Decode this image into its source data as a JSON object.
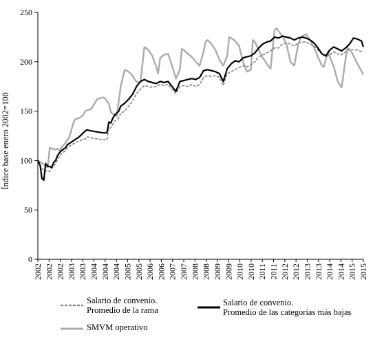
{
  "chart_data": {
    "type": "line",
    "title": "",
    "ylabel": "Índice base enero 2002=100",
    "xlabel": "",
    "ylim": [
      0,
      250
    ],
    "yticks": [
      0,
      50,
      100,
      150,
      200,
      250
    ],
    "xlim": [
      2002.0,
      2015.75
    ],
    "grid": false,
    "legend_position": "bottom",
    "xtick_labels": [
      "2002",
      "2002",
      "2002",
      "2003",
      "2003",
      "2004",
      "2004",
      "2004",
      "2005",
      "2005",
      "2006",
      "2006",
      "2007",
      "2007",
      "2008",
      "2008",
      "2009",
      "2009",
      "2010",
      "2010",
      "2011",
      "2011",
      "2012",
      "2012",
      "2013",
      "2013",
      "2014",
      "2014",
      "2015",
      "2015"
    ],
    "series": [
      {
        "name": "Salario de convenio. Promedio de la rama",
        "legend_lines": [
          "Salario de convenio.",
          "Promedio de la rama"
        ],
        "color": "#808080",
        "style": "dashed",
        "x": [
          2002.0,
          2002.1,
          2002.17,
          2002.25,
          2002.33,
          2002.42,
          2002.5,
          2002.58,
          2002.67,
          2002.75,
          2002.83,
          2002.92,
          2003.0,
          2003.17,
          2003.25,
          2003.5,
          2003.75,
          2004.0,
          2004.08,
          2004.25,
          2004.5,
          2004.75,
          2004.92,
          2005.0,
          2005.08,
          2005.17,
          2005.25,
          2005.42,
          2005.5,
          2005.67,
          2005.83,
          2006.0,
          2006.17,
          2006.33,
          2006.5,
          2006.67,
          2006.83,
          2007.0,
          2007.17,
          2007.33,
          2007.5,
          2007.67,
          2007.83,
          2008.0,
          2008.17,
          2008.33,
          2008.5,
          2008.67,
          2008.83,
          2009.0,
          2009.17,
          2009.33,
          2009.5,
          2009.67,
          2009.83,
          2010.0,
          2010.17,
          2010.33,
          2010.5,
          2010.67,
          2010.83,
          2011.0,
          2011.17,
          2011.33,
          2011.5,
          2011.67,
          2011.83,
          2012.0,
          2012.17,
          2012.33,
          2012.5,
          2012.67,
          2012.83,
          2013.0,
          2013.17,
          2013.33,
          2013.5,
          2013.67,
          2013.83,
          2014.0,
          2014.17,
          2014.33,
          2014.5,
          2014.67,
          2014.83,
          2015.0,
          2015.17,
          2015.33,
          2015.5,
          2015.67,
          2015.75
        ],
        "y": [
          100,
          95,
          92,
          90,
          90,
          89,
          89,
          92,
          94,
          97,
          101,
          104,
          107,
          110,
          113,
          117,
          120,
          122,
          124,
          123,
          122,
          121,
          121,
          133,
          133,
          137,
          140,
          143,
          148,
          150,
          155,
          160,
          168,
          172,
          176,
          175,
          174,
          175,
          177,
          176,
          177,
          172,
          168,
          175,
          176,
          175,
          177,
          175,
          177,
          184,
          186,
          185,
          186,
          184,
          176,
          188,
          190,
          192,
          194,
          196,
          195,
          197,
          200,
          205,
          207,
          209,
          211,
          214,
          214,
          218,
          219,
          218,
          216,
          219,
          220,
          220,
          218,
          216,
          212,
          208,
          205,
          207,
          210,
          208,
          207,
          210,
          213,
          212,
          212,
          210,
          211
        ]
      },
      {
        "name": "Salario de convenio. Promedio de las categorías más bajas",
        "legend_lines": [
          "Salario de convenio.",
          "Promedio de las categorías más bajas"
        ],
        "color": "#000000",
        "style": "solid",
        "x": [
          2002.0,
          2002.1,
          2002.17,
          2002.25,
          2002.33,
          2002.42,
          2002.5,
          2002.58,
          2002.67,
          2002.75,
          2002.83,
          2002.92,
          2003.0,
          2003.17,
          2003.25,
          2003.5,
          2003.75,
          2004.0,
          2004.08,
          2004.25,
          2004.5,
          2004.75,
          2004.92,
          2005.0,
          2005.08,
          2005.17,
          2005.25,
          2005.42,
          2005.5,
          2005.67,
          2005.83,
          2006.0,
          2006.17,
          2006.33,
          2006.5,
          2006.67,
          2006.83,
          2007.0,
          2007.17,
          2007.33,
          2007.5,
          2007.67,
          2007.83,
          2008.0,
          2008.17,
          2008.33,
          2008.5,
          2008.67,
          2008.83,
          2009.0,
          2009.17,
          2009.33,
          2009.5,
          2009.67,
          2009.83,
          2010.0,
          2010.17,
          2010.33,
          2010.5,
          2010.67,
          2010.83,
          2011.0,
          2011.17,
          2011.33,
          2011.5,
          2011.67,
          2011.83,
          2012.0,
          2012.17,
          2012.33,
          2012.5,
          2012.67,
          2012.83,
          2013.0,
          2013.17,
          2013.33,
          2013.5,
          2013.67,
          2013.83,
          2014.0,
          2014.17,
          2014.33,
          2014.5,
          2014.67,
          2014.83,
          2015.0,
          2015.17,
          2015.33,
          2015.5,
          2015.67,
          2015.75
        ],
        "y": [
          100,
          95,
          82,
          80,
          97,
          94,
          94,
          93,
          98,
          100,
          105,
          108,
          110,
          113,
          116,
          120,
          124,
          130,
          131,
          130,
          129,
          128,
          128,
          139,
          138,
          143,
          146,
          150,
          155,
          158,
          162,
          167,
          175,
          180,
          182,
          180,
          179,
          178,
          180,
          179,
          180,
          175,
          170,
          180,
          181,
          182,
          183,
          182,
          184,
          191,
          192,
          191,
          190,
          188,
          180,
          193,
          198,
          201,
          200,
          204,
          205,
          206,
          209,
          214,
          218,
          220,
          221,
          225,
          224,
          226,
          225,
          224,
          222,
          224,
          225,
          224,
          222,
          219,
          214,
          208,
          206,
          212,
          215,
          213,
          211,
          214,
          218,
          224,
          223,
          221,
          215
        ]
      },
      {
        "name": "SMVM operativo",
        "legend_lines": [
          "SMVM operativo"
        ],
        "color": "#ababab",
        "style": "solid",
        "x": [
          2002.0,
          2002.2,
          2002.42,
          2002.5,
          2002.58,
          2002.75,
          2002.83,
          2002.92,
          2003.0,
          2003.17,
          2003.33,
          2003.5,
          2003.58,
          2003.75,
          2003.92,
          2004.0,
          2004.08,
          2004.25,
          2004.5,
          2004.75,
          2004.83,
          2004.92,
          2005.0,
          2005.08,
          2005.17,
          2005.33,
          2005.5,
          2005.67,
          2005.83,
          2006.0,
          2006.08,
          2006.17,
          2006.33,
          2006.5,
          2006.67,
          2006.83,
          2007.0,
          2007.08,
          2007.17,
          2007.33,
          2007.5,
          2007.67,
          2007.83,
          2008.0,
          2008.08,
          2008.17,
          2008.33,
          2008.5,
          2008.67,
          2008.83,
          2009.0,
          2009.08,
          2009.17,
          2009.33,
          2009.5,
          2009.67,
          2009.83,
          2010.0,
          2010.08,
          2010.17,
          2010.33,
          2010.5,
          2010.67,
          2010.83,
          2011.0,
          2011.08,
          2011.17,
          2011.33,
          2011.5,
          2011.67,
          2011.83,
          2012.0,
          2012.08,
          2012.17,
          2012.33,
          2012.5,
          2012.67,
          2012.83,
          2013.0,
          2013.08,
          2013.17,
          2013.33,
          2013.5,
          2013.67,
          2013.83,
          2014.0,
          2014.08,
          2014.25,
          2014.5,
          2014.67,
          2014.83,
          2015.0,
          2015.08,
          2015.25,
          2015.5,
          2015.75
        ],
        "y": [
          100,
          97,
          93,
          113,
          112,
          111,
          112,
          110,
          113,
          118,
          124,
          138,
          142,
          143,
          146,
          150,
          151,
          152,
          162,
          164,
          163,
          160,
          158,
          149,
          147,
          145,
          175,
          192,
          190,
          186,
          182,
          180,
          179,
          215,
          212,
          206,
          195,
          188,
          204,
          207,
          208,
          196,
          183,
          192,
          213,
          212,
          208,
          205,
          200,
          196,
          210,
          220,
          222,
          218,
          212,
          202,
          196,
          206,
          225,
          224,
          221,
          216,
          200,
          190,
          192,
          222,
          220,
          212,
          204,
          198,
          193,
          232,
          234,
          231,
          226,
          218,
          200,
          196,
          218,
          223,
          226,
          228,
          222,
          214,
          205,
          196,
          195,
          210,
          195,
          180,
          174,
          203,
          214,
          210,
          198,
          187
        ]
      }
    ]
  }
}
